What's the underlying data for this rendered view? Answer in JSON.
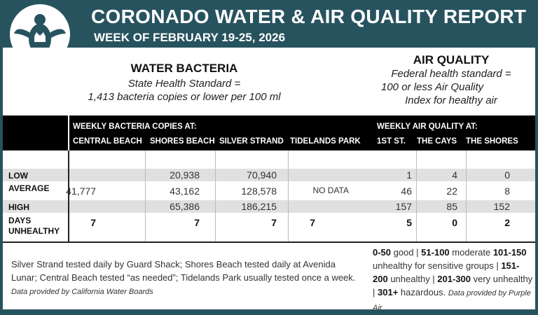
{
  "header": {
    "title": "CORONADO WATER & AIR QUALITY REPORT",
    "subtitle": "WEEK OF FEBRUARY 19-25, 2026",
    "logo": "turtle-crown-logo"
  },
  "water": {
    "heading": "WATER BACTERIA",
    "standard_line1": "State Health Standard  =",
    "standard_line2": "1,413 bacteria copies or lower per 100 ml",
    "group_label": "WEEKLY BACTERIA COPIES AT:",
    "columns": [
      "CENTRAL BEACH",
      "SHORES BEACH",
      "SILVER STRAND",
      "TIDELANDS PARK"
    ]
  },
  "air": {
    "heading": "AIR QUALITY",
    "standard_line1": "Federal health standard =",
    "standard_line2": "100 or less Air Quality",
    "standard_line3": "Index for healthy air",
    "group_label": "WEEKLY AIR QUALITY AT:",
    "columns": [
      "1ST ST.",
      "THE CAYS",
      "THE SHORES"
    ]
  },
  "rows": [
    {
      "label": "LOW",
      "values": [
        "",
        "20,938",
        "70,940",
        "",
        "1",
        "4",
        "0"
      ]
    },
    {
      "label": "AVERAGE",
      "values": [
        "41,777",
        "43,162",
        "128,578",
        "NO DATA",
        "46",
        "22",
        "8"
      ]
    },
    {
      "label": "HIGH",
      "values": [
        "",
        "65,386",
        "186,215",
        "",
        "157",
        "85",
        "152"
      ]
    },
    {
      "label": "DAYS UNHEALTHY",
      "values": [
        "7",
        "7",
        "7",
        "7",
        "5",
        "0",
        "2"
      ]
    }
  ],
  "notes": {
    "water_text": "Silver Strand tested daily by Guard Shack; Shores Beach tested daily at Avenida Lunar; Central Beach tested “as needed”; Tidelands Park usually tested once a week.",
    "water_source": "Data provided by California Water Boards",
    "scale": [
      {
        "range": "0-50",
        "desc": " good | "
      },
      {
        "range": "51-100",
        "desc": " moderate "
      },
      {
        "range": "101-150",
        "desc": " unhealthy for sensitive groups | "
      },
      {
        "range": "151-200",
        "desc": " unhealthy | "
      },
      {
        "range": "201-300",
        "desc": " very unhealthy | "
      },
      {
        "range": "301+",
        "desc": " hazardous. "
      }
    ],
    "air_source": "Data provided by Purple Air"
  }
}
